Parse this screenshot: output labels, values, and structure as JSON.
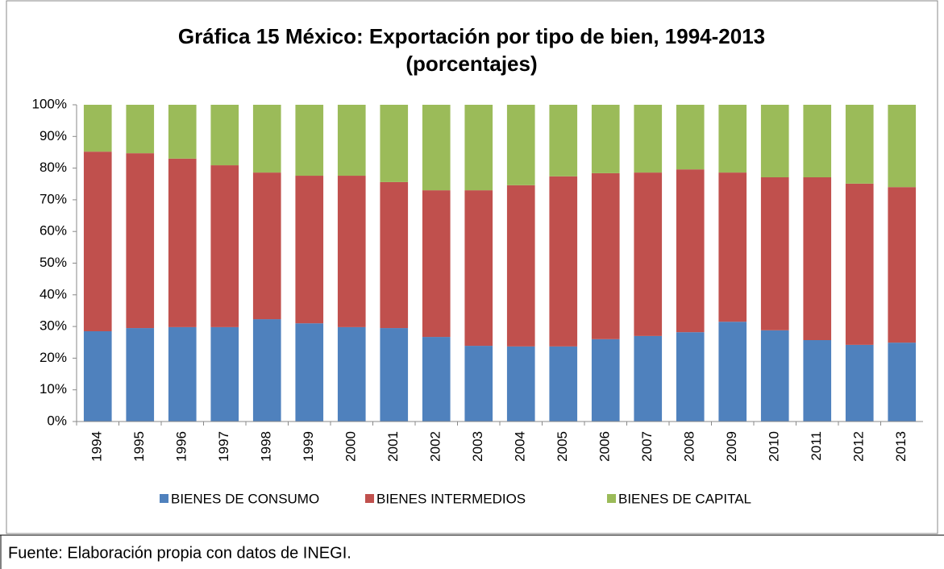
{
  "chart_data": {
    "type": "stacked_bar",
    "title": "Gráfica 15 México: Exportación por tipo de bien, 1994-2013",
    "subtitle": "(porcentajes)",
    "source": "Fuente: Elaboración propia con datos de INEGI.",
    "categories": [
      "1994",
      "1995",
      "1996",
      "1997",
      "1998",
      "1999",
      "2000",
      "2001",
      "2002",
      "2003",
      "2004",
      "2005",
      "2006",
      "2007",
      "2008",
      "2009",
      "2010",
      "2011",
      "2012",
      "2013"
    ],
    "series": [
      {
        "name": "BIENES DE CONSUMO",
        "color": "#4f81bd",
        "values": [
          28.5,
          29.5,
          29.8,
          29.8,
          32.3,
          31,
          29.8,
          29.5,
          26.7,
          23.9,
          23.7,
          23.7,
          26,
          27,
          28.2,
          31.5,
          28.8,
          25.7,
          24.2,
          24.9
        ]
      },
      {
        "name": "BIENES INTERMEDIOS",
        "color": "#c0504d",
        "values": [
          56.7,
          55.2,
          53.2,
          51.1,
          46.3,
          46.6,
          47.8,
          46.1,
          46.3,
          49.1,
          50.9,
          53.7,
          52.4,
          51.6,
          51.4,
          47.1,
          48.3,
          51.4,
          50.9,
          49.1
        ]
      },
      {
        "name": "BIENES DE CAPITAL",
        "color": "#9bbb59",
        "values": [
          14.8,
          15.3,
          17,
          19.1,
          21.4,
          22.4,
          22.4,
          24.4,
          27,
          27,
          25.4,
          22.6,
          21.6,
          21.4,
          20.4,
          21.4,
          22.9,
          22.9,
          24.9,
          26
        ]
      }
    ],
    "ylim": [
      0,
      100
    ],
    "yticks": [
      {
        "value": 0,
        "label": "0%"
      },
      {
        "value": 10,
        "label": "10%"
      },
      {
        "value": 20,
        "label": "20%"
      },
      {
        "value": 30,
        "label": "30%"
      },
      {
        "value": 40,
        "label": "40%"
      },
      {
        "value": 50,
        "label": "50%"
      },
      {
        "value": 60,
        "label": "60%"
      },
      {
        "value": 70,
        "label": "70%"
      },
      {
        "value": 80,
        "label": "80%"
      },
      {
        "value": 90,
        "label": "90%"
      },
      {
        "value": 100,
        "label": "100%"
      }
    ],
    "grid": false,
    "legend": "bottom"
  }
}
